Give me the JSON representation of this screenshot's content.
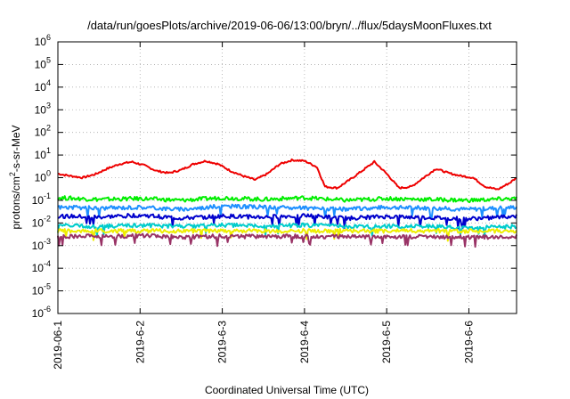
{
  "chart_data": {
    "type": "line",
    "title": "/data/run/goesPlots/archive/2019-06-06/13:00/bryn/../flux/5daysMoonFluxes.txt",
    "xlabel": "Coordinated Universal Time (UTC)",
    "ylabel": {
      "prefix": "protons/cm",
      "sup": "2",
      "suffix": "-s-sr-MeV"
    },
    "yscale": "log",
    "ylim": [
      1e-06,
      1000000.0
    ],
    "xlim_days": [
      0,
      5.58
    ],
    "x_ticks": [
      {
        "day": 0,
        "label": "2019-06-1"
      },
      {
        "day": 1,
        "label": "2019-6-2"
      },
      {
        "day": 2,
        "label": "2019-6-3"
      },
      {
        "day": 3,
        "label": "2019-6-4"
      },
      {
        "day": 4,
        "label": "2019-6-5"
      },
      {
        "day": 5,
        "label": "2019-6-6"
      }
    ],
    "y_ticks": [
      {
        "exp": 6,
        "base": "10",
        "sup": "6"
      },
      {
        "exp": 5,
        "base": "10",
        "sup": "5"
      },
      {
        "exp": 4,
        "base": "10",
        "sup": "4"
      },
      {
        "exp": 3,
        "base": "10",
        "sup": "3"
      },
      {
        "exp": 2,
        "base": "10",
        "sup": "2"
      },
      {
        "exp": 1,
        "base": "10",
        "sup": "1"
      },
      {
        "exp": 0,
        "base": "10",
        "sup": "0"
      },
      {
        "exp": -1,
        "base": "10",
        "sup": "-1"
      },
      {
        "exp": -2,
        "base": "10",
        "sup": "-2"
      },
      {
        "exp": -3,
        "base": "10",
        "sup": "-3"
      },
      {
        "exp": -4,
        "base": "10",
        "sup": "-4"
      },
      {
        "exp": -5,
        "base": "10",
        "sup": "-5"
      },
      {
        "exp": -6,
        "base": "10",
        "sup": "-6"
      }
    ],
    "grid": true,
    "series": [
      {
        "color": "#ee0000",
        "x": [
          0,
          0.15,
          0.3,
          0.45,
          0.6,
          0.75,
          0.9,
          1.05,
          1.2,
          1.35,
          1.5,
          1.65,
          1.8,
          1.95,
          2.1,
          2.25,
          2.4,
          2.55,
          2.7,
          2.85,
          3.0,
          3.15,
          3.25,
          3.4,
          3.55,
          3.7,
          3.85,
          4.0,
          4.15,
          4.3,
          4.45,
          4.6,
          4.75,
          4.9,
          5.05,
          5.2,
          5.35,
          5.5,
          5.58
        ],
        "y": [
          1.5,
          1.2,
          1.0,
          1.4,
          2.5,
          4.0,
          5.0,
          3.5,
          2.0,
          1.6,
          2.2,
          4.0,
          5.5,
          4.0,
          2.0,
          1.2,
          0.8,
          1.5,
          4.0,
          6.0,
          5.5,
          3.0,
          0.4,
          0.35,
          0.8,
          2.0,
          5.0,
          1.5,
          0.35,
          0.4,
          1.0,
          2.5,
          1.6,
          1.2,
          1.0,
          0.4,
          0.3,
          0.6,
          1.0
        ]
      },
      {
        "color": "#00ee00",
        "x": [
          0,
          0.5,
          1.0,
          1.5,
          2.0,
          2.5,
          3.0,
          3.5,
          4.0,
          4.5,
          5.0,
          5.58
        ],
        "y": [
          0.13,
          0.11,
          0.12,
          0.1,
          0.13,
          0.11,
          0.13,
          0.1,
          0.12,
          0.11,
          0.1,
          0.12
        ]
      },
      {
        "color": "#1e90ff",
        "x": [
          0,
          0.5,
          1.0,
          1.5,
          2.0,
          2.5,
          3.0,
          3.5,
          4.0,
          4.5,
          5.0,
          5.58
        ],
        "y": [
          0.05,
          0.045,
          0.05,
          0.04,
          0.055,
          0.05,
          0.045,
          0.04,
          0.05,
          0.045,
          0.04,
          0.05
        ]
      },
      {
        "color": "#0000cc",
        "x": [
          0,
          0.5,
          1.0,
          1.5,
          2.0,
          2.5,
          3.0,
          3.5,
          4.0,
          4.5,
          5.0,
          5.58
        ],
        "y": [
          0.02,
          0.018,
          0.022,
          0.016,
          0.02,
          0.018,
          0.021,
          0.016,
          0.019,
          0.017,
          0.015,
          0.02
        ]
      },
      {
        "color": "#00cccc",
        "x": [
          0,
          0.5,
          1.0,
          1.5,
          2.0,
          2.5,
          3.0,
          3.5,
          4.0,
          4.5,
          5.0,
          5.58
        ],
        "y": [
          0.008,
          0.007,
          0.008,
          0.007,
          0.008,
          0.007,
          0.008,
          0.007,
          0.007,
          0.007,
          0.006,
          0.007
        ]
      },
      {
        "color": "#eeee00",
        "x": [
          0,
          0.5,
          1.0,
          1.5,
          2.0,
          2.5,
          3.0,
          3.5,
          4.0,
          4.5,
          5.0,
          5.58
        ],
        "y": [
          0.0045,
          0.0045,
          0.0044,
          0.0045,
          0.0045,
          0.0044,
          0.0045,
          0.0045,
          0.0044,
          0.0045,
          0.0044,
          0.0045
        ]
      },
      {
        "color": "#993366",
        "x": [
          0,
          0.5,
          1.0,
          1.5,
          2.0,
          2.5,
          3.0,
          3.5,
          4.0,
          4.5,
          5.0,
          5.58
        ],
        "y": [
          0.0026,
          0.0025,
          0.0027,
          0.0024,
          0.0026,
          0.0025,
          0.0026,
          0.0024,
          0.0025,
          0.0024,
          0.0023,
          0.0025
        ]
      }
    ]
  }
}
